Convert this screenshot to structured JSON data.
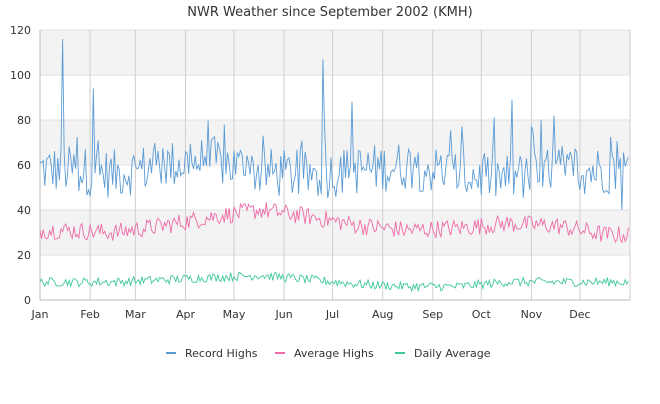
{
  "chart_data": {
    "type": "line",
    "title": "NWR Weather since September 2002 (KMH)",
    "xlabel": "",
    "ylabel": "",
    "ylim": [
      0,
      120
    ],
    "yticks": [
      0,
      20,
      40,
      60,
      80,
      100,
      120
    ],
    "months": [
      "Jan",
      "Feb",
      "Mar",
      "Apr",
      "May",
      "Jun",
      "Jul",
      "Aug",
      "Sep",
      "Oct",
      "Nov",
      "Dec"
    ],
    "x_unit": "day of year",
    "grid": "horizontal bands + vertical month lines",
    "legend_position": "bottom",
    "series": [
      {
        "name": "Record Highs",
        "color": "#5b9bd5",
        "band": [
          40,
          95
        ],
        "peaks": [
          {
            "day": 14,
            "value": 116
          },
          {
            "day": 33,
            "value": 94
          },
          {
            "day": 175,
            "value": 107
          },
          {
            "day": 193,
            "value": 88
          },
          {
            "day": 292,
            "value": 89
          },
          {
            "day": 318,
            "value": 82
          },
          {
            "day": 360,
            "value": 40
          }
        ],
        "base": [
          58,
          56,
          60,
          62,
          57,
          55,
          58,
          60,
          56,
          54,
          57,
          58
        ]
      },
      {
        "name": "Average Highs",
        "color": "#f06ba8",
        "base": [
          31,
          30,
          33,
          37,
          40,
          37,
          33,
          31,
          32,
          34,
          33,
          29
        ]
      },
      {
        "name": "Daily Average",
        "color": "#40c8a0",
        "base": [
          8,
          8,
          9,
          10,
          11,
          9,
          7,
          6,
          6,
          8,
          8,
          8
        ]
      }
    ]
  }
}
